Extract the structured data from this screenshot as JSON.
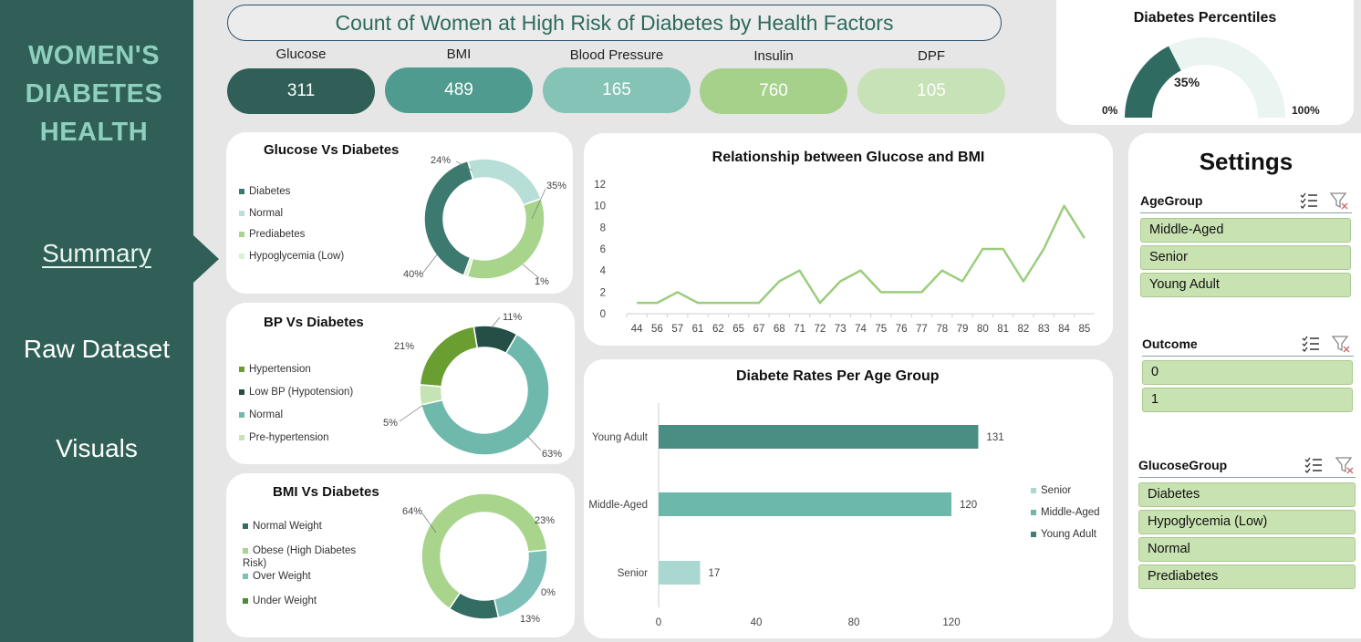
{
  "sidebar": {
    "brand": [
      "WOMEN'S",
      "DIABETES",
      "HEALTH"
    ],
    "nav": [
      "Summary",
      "Raw Dataset",
      "Visuals"
    ]
  },
  "header": {
    "title": "Count of Women at High Risk of Diabetes by Health Factors"
  },
  "kpis": [
    {
      "label": "Glucose",
      "value": "311",
      "color": "#2f5f56"
    },
    {
      "label": "BMI",
      "value": "489",
      "color": "#4f9b8f"
    },
    {
      "label": "Blood Pressure",
      "value": "165",
      "color": "#84c3b6"
    },
    {
      "label": "Insulin",
      "value": "760",
      "color": "#a6d18b"
    },
    {
      "label": "DPF",
      "value": "105",
      "color": "#c7e2b7"
    }
  ],
  "gauge": {
    "title": "Diabetes Percentiles",
    "value_label": "35%",
    "value": 0.35,
    "min_label": "0%",
    "max_label": "100%"
  },
  "glucose_donut": {
    "title": "Glucose Vs Diabetes",
    "legend": [
      "Diabetes",
      "Normal",
      "Prediabetes",
      "Hypoglycemia (Low)"
    ],
    "colors": [
      "#3c7a6f",
      "#b7dfd8",
      "#a8d48c",
      "#daf0ce"
    ],
    "labels": [
      "40%",
      "24%",
      "35%",
      "1%"
    ]
  },
  "bp_donut": {
    "title": "BP Vs Diabetes",
    "legend": [
      "Hypertension",
      "Low BP (Hypotension)",
      "Normal",
      "Pre-hypertension"
    ],
    "colors": [
      "#6b9e30",
      "#254f46",
      "#6fb8ac",
      "#c6e3b3"
    ],
    "labels": [
      "21%",
      "11%",
      "63%",
      "5%"
    ]
  },
  "bmi_donut": {
    "title": "BMI Vs Diabetes",
    "legend": [
      "Normal Weight",
      "Obese (High Diabetes Risk)",
      "Over Weight",
      "Under Weight"
    ],
    "colors": [
      "#336d62",
      "#a8d48c",
      "#7cc0b7",
      "#4e8a3c"
    ],
    "labels": [
      "13%",
      "64%",
      "23%",
      "0%"
    ]
  },
  "line_chart": {
    "title": "Relationship between Glucose and BMI"
  },
  "bar_chart": {
    "title": "Diabete Rates Per Age Group",
    "legend": [
      "Senior",
      "Middle-Aged",
      "Young Adult"
    ]
  },
  "settings": {
    "title": "Settings",
    "slicers": [
      {
        "title": "AgeGroup",
        "items": [
          "Middle-Aged",
          "Senior",
          "Young Adult"
        ]
      },
      {
        "title": "Outcome",
        "items": [
          "0",
          "1"
        ]
      },
      {
        "title": "GlucoseGroup",
        "items": [
          "Diabetes",
          "Hypoglycemia (Low)",
          "Normal",
          "Prediabetes"
        ]
      }
    ]
  },
  "chart_data": [
    {
      "type": "pie",
      "title": "Glucose Vs Diabetes",
      "categories": [
        "Diabetes",
        "Normal",
        "Prediabetes",
        "Hypoglycemia (Low)"
      ],
      "values": [
        40,
        24,
        35,
        1
      ]
    },
    {
      "type": "pie",
      "title": "BP Vs Diabetes",
      "categories": [
        "Hypertension",
        "Low BP (Hypotension)",
        "Normal",
        "Pre-hypertension"
      ],
      "values": [
        21,
        11,
        63,
        5
      ]
    },
    {
      "type": "pie",
      "title": "BMI Vs Diabetes",
      "categories": [
        "Normal Weight",
        "Obese (High Diabetes Risk)",
        "Over Weight",
        "Under Weight"
      ],
      "values": [
        13,
        64,
        23,
        0
      ]
    },
    {
      "type": "line",
      "title": "Relationship between Glucose and BMI",
      "x": [
        "44",
        "56",
        "57",
        "61",
        "62",
        "65",
        "67",
        "68",
        "71",
        "72",
        "73",
        "74",
        "75",
        "76",
        "77",
        "78",
        "79",
        "80",
        "81",
        "82",
        "83",
        "84",
        "85"
      ],
      "values": [
        1,
        1,
        2,
        1,
        1,
        1,
        1,
        3,
        4,
        1,
        3,
        4,
        2,
        2,
        2,
        4,
        3,
        6,
        6,
        3,
        6,
        10,
        7
      ],
      "ylim": [
        0,
        12
      ],
      "yticks": [
        0,
        2,
        4,
        6,
        8,
        10,
        12
      ],
      "color": "#9ccd7e"
    },
    {
      "type": "bar",
      "orientation": "horizontal",
      "title": "Diabete Rates Per Age Group",
      "categories": [
        "Young Adult",
        "Middle-Aged",
        "Senior"
      ],
      "values": [
        131,
        120,
        17
      ],
      "colors": [
        "#4a8d82",
        "#6cb8ab",
        "#a8d8d0"
      ],
      "xlim": [
        0,
        160
      ],
      "xticks": [
        0,
        40,
        80,
        120
      ]
    }
  ]
}
